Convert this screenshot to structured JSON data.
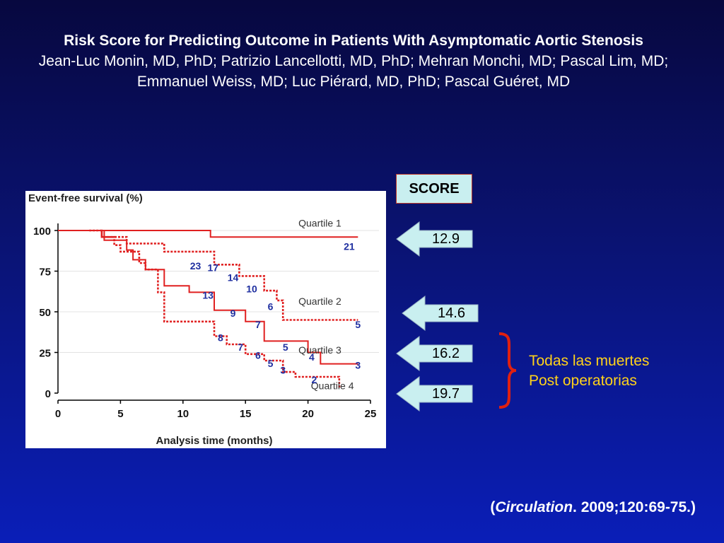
{
  "slide": {
    "title": "Risk Score for Predicting Outcome in Patients With Asymptomatic Aortic Stenosis",
    "authors": "Jean-Luc Monin, MD, PhD; Patrizio Lancellotti, MD, PhD; Mehran Monchi, MD; Pascal Lim, MD; Emmanuel Weiss, MD; Luc Piérard, MD, PhD; Pascal Guéret, MD",
    "score_header": "SCORE",
    "scores": [
      "12.9",
      "14.6",
      "16.2",
      "19.7"
    ],
    "note_line1": "Todas las muertes",
    "note_line2": "Post operatorias",
    "citation_open": "(",
    "citation_journal": "Circulation",
    "citation_rest": ". 2009;120:69-75.)",
    "colors": {
      "background": "#0a1373",
      "arrow_fill": "#c9eff0",
      "note": "#ffd21a",
      "brace": "#e02010",
      "curve": "#e02020",
      "count_labels": "#1f2fa0"
    }
  },
  "chart_data": {
    "type": "line",
    "title": "",
    "ylabel": "Event-free survival (%)",
    "xlabel": "Analysis time (months)",
    "xlim": [
      0,
      25
    ],
    "ylim": [
      0,
      100
    ],
    "xticks": [
      0,
      5,
      10,
      15,
      20,
      25
    ],
    "yticks": [
      0,
      25,
      50,
      75,
      100
    ],
    "grid": "horizontal",
    "series": [
      {
        "name": "Quartile 1",
        "style": "solid",
        "points": [
          [
            0,
            100
          ],
          [
            12.2,
            100
          ],
          [
            12.2,
            96
          ],
          [
            24,
            96
          ]
        ],
        "counts": [
          {
            "x": 23.3,
            "y": 88,
            "label": "21"
          }
        ]
      },
      {
        "name": "Quartile 2",
        "style": "dotted",
        "points": [
          [
            2.5,
            100
          ],
          [
            3.5,
            100
          ],
          [
            3.5,
            96
          ],
          [
            5.5,
            96
          ],
          [
            5.5,
            92
          ],
          [
            8.5,
            92
          ],
          [
            8.5,
            87
          ],
          [
            12.5,
            87
          ],
          [
            12.5,
            79
          ],
          [
            14.5,
            79
          ],
          [
            14.5,
            72
          ],
          [
            16.5,
            72
          ],
          [
            16.5,
            63
          ],
          [
            17.5,
            63
          ],
          [
            17.5,
            57
          ],
          [
            18,
            57
          ],
          [
            18,
            45
          ],
          [
            24,
            45
          ]
        ],
        "counts": [
          {
            "x": 12.4,
            "y": 75,
            "label": "17"
          },
          {
            "x": 14,
            "y": 69,
            "label": "14"
          },
          {
            "x": 15.5,
            "y": 62,
            "label": "10"
          },
          {
            "x": 17,
            "y": 51,
            "label": "6"
          },
          {
            "x": 24,
            "y": 40,
            "label": "5"
          }
        ]
      },
      {
        "name": "Quartile 3",
        "style": "solid",
        "points": [
          [
            0,
            100
          ],
          [
            3.7,
            100
          ],
          [
            3.7,
            94
          ],
          [
            5.5,
            94
          ],
          [
            5.5,
            88
          ],
          [
            6,
            88
          ],
          [
            6,
            82
          ],
          [
            7,
            82
          ],
          [
            7,
            76
          ],
          [
            8.5,
            76
          ],
          [
            8.5,
            66
          ],
          [
            10.5,
            66
          ],
          [
            10.5,
            62
          ],
          [
            12.5,
            62
          ],
          [
            12.5,
            51
          ],
          [
            15,
            51
          ],
          [
            15,
            44
          ],
          [
            16.5,
            44
          ],
          [
            16.5,
            32
          ],
          [
            20,
            32
          ],
          [
            20,
            25
          ],
          [
            21,
            25
          ],
          [
            21,
            18
          ],
          [
            24,
            18
          ]
        ],
        "counts": [
          {
            "x": 11,
            "y": 76,
            "label": "23"
          },
          {
            "x": 12,
            "y": 58,
            "label": "13"
          },
          {
            "x": 14,
            "y": 47,
            "label": "9"
          },
          {
            "x": 16,
            "y": 40,
            "label": "7"
          },
          {
            "x": 18.2,
            "y": 26,
            "label": "5"
          },
          {
            "x": 20.3,
            "y": 20,
            "label": "4"
          },
          {
            "x": 24,
            "y": 15,
            "label": "3"
          }
        ]
      },
      {
        "name": "Quartile 4",
        "style": "dotted",
        "points": [
          [
            3.5,
            100
          ],
          [
            3.5,
            96
          ],
          [
            4.5,
            96
          ],
          [
            4.5,
            91
          ],
          [
            5,
            91
          ],
          [
            5,
            87
          ],
          [
            6.5,
            87
          ],
          [
            6.5,
            80
          ],
          [
            7,
            80
          ],
          [
            7,
            76
          ],
          [
            8,
            76
          ],
          [
            8,
            62
          ],
          [
            8.5,
            62
          ],
          [
            8.5,
            44
          ],
          [
            12.5,
            44
          ],
          [
            12.5,
            35
          ],
          [
            13.5,
            35
          ],
          [
            13.5,
            30
          ],
          [
            15,
            30
          ],
          [
            15,
            24
          ],
          [
            16.5,
            24
          ],
          [
            16.5,
            20
          ],
          [
            18,
            20
          ],
          [
            18,
            13
          ],
          [
            19,
            13
          ],
          [
            19,
            10
          ],
          [
            22.5,
            10
          ],
          [
            22.5,
            3
          ]
        ],
        "counts": [
          {
            "x": 13,
            "y": 32,
            "label": "8"
          },
          {
            "x": 14.6,
            "y": 26,
            "label": "7"
          },
          {
            "x": 16,
            "y": 21,
            "label": "6"
          },
          {
            "x": 17,
            "y": 16,
            "label": "5"
          },
          {
            "x": 18,
            "y": 12,
            "label": "3"
          },
          {
            "x": 20.5,
            "y": 6,
            "label": "2"
          }
        ]
      }
    ]
  }
}
